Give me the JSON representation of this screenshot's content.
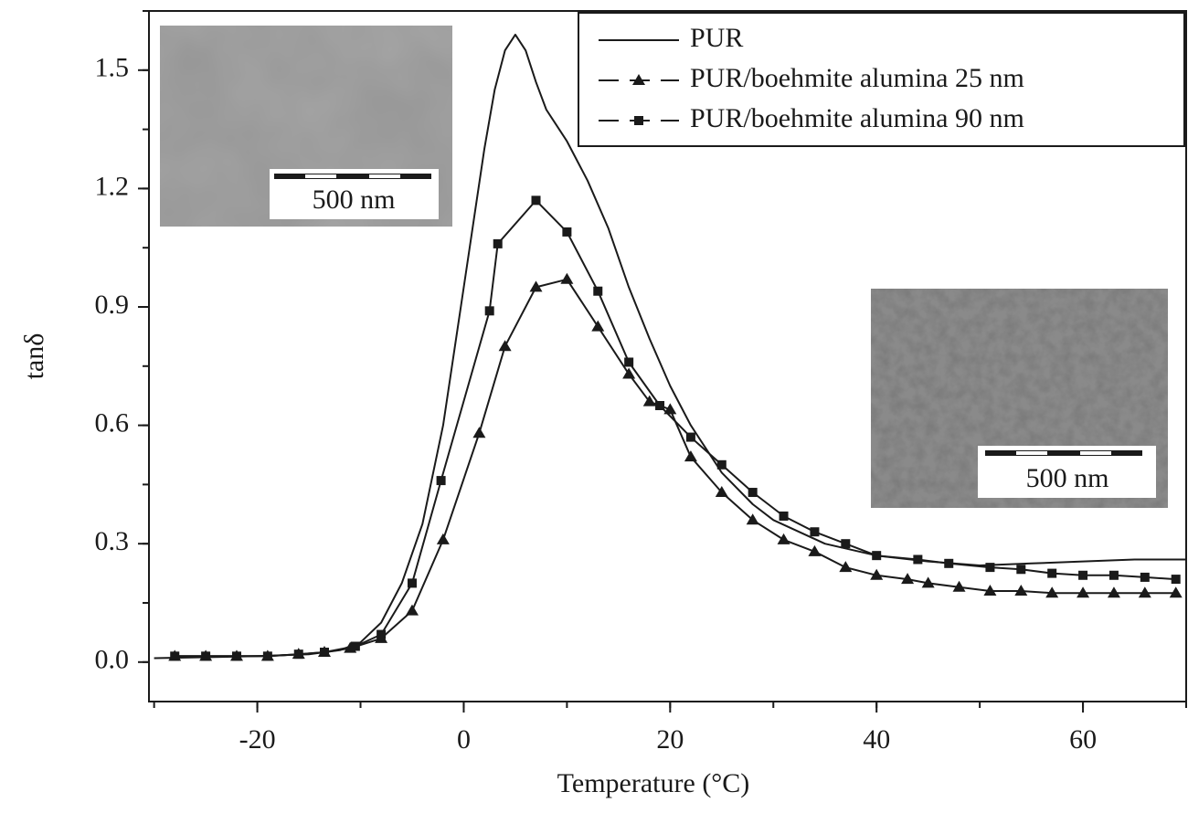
{
  "chart_data": {
    "type": "line",
    "xlabel": "Temperature (°C)",
    "ylabel": "tanδ",
    "xlim": [
      -30.5,
      70
    ],
    "xticks": [
      -20,
      0,
      20,
      40,
      60
    ],
    "ylim": [
      -0.1,
      1.65
    ],
    "yticks": [
      {
        "value": 0,
        "label": "0.0"
      },
      0.3,
      0.6,
      0.9,
      1.2,
      1.5
    ],
    "legend": "upper right",
    "series": [
      {
        "name": "PUR",
        "color": "#1a1a1a",
        "marker": "none",
        "x": [
          -30,
          -20,
          -15,
          -12,
          -10,
          -8,
          -6,
          -4,
          -2,
          0,
          2,
          3,
          4,
          5,
          6,
          7,
          8,
          10,
          12,
          14,
          16,
          18,
          20,
          22,
          25,
          28,
          30,
          35,
          40,
          45,
          50,
          55,
          60,
          65,
          70
        ],
        "values": [
          0.01,
          0.015,
          0.02,
          0.03,
          0.05,
          0.1,
          0.2,
          0.35,
          0.6,
          0.95,
          1.3,
          1.45,
          1.55,
          1.59,
          1.55,
          1.47,
          1.4,
          1.32,
          1.22,
          1.1,
          0.95,
          0.82,
          0.7,
          0.6,
          0.48,
          0.4,
          0.36,
          0.3,
          0.27,
          0.255,
          0.245,
          0.25,
          0.255,
          0.26,
          0.26
        ]
      },
      {
        "name": "PUR/boehmite alumina 25 nm",
        "color": "#1a1a1a",
        "marker": "triangle",
        "x": [
          -28,
          -25,
          -22,
          -19,
          -16,
          -13.5,
          -11,
          -8,
          -5,
          -2,
          1.5,
          4,
          7,
          10,
          13,
          16,
          18,
          20,
          22,
          25,
          28,
          31,
          34,
          37,
          40,
          43,
          45,
          48,
          51,
          54,
          57,
          60,
          63,
          66,
          69
        ],
        "values": [
          0.015,
          0.015,
          0.015,
          0.015,
          0.02,
          0.025,
          0.035,
          0.06,
          0.13,
          0.31,
          0.58,
          0.8,
          0.95,
          0.97,
          0.85,
          0.73,
          0.66,
          0.64,
          0.52,
          0.43,
          0.36,
          0.31,
          0.28,
          0.24,
          0.22,
          0.21,
          0.2,
          0.19,
          0.18,
          0.18,
          0.175,
          0.175,
          0.175,
          0.175,
          0.175
        ]
      },
      {
        "name": "PUR/boehmite alumina 90 nm",
        "color": "#1a1a1a",
        "marker": "square",
        "x": [
          -28,
          -25,
          -22,
          -19,
          -16,
          -13.5,
          -10.5,
          -8,
          -5,
          -2.2,
          2.5,
          3.3,
          7,
          10,
          13,
          16,
          19,
          22,
          25,
          28,
          31,
          34,
          37,
          40,
          44,
          47,
          51,
          54,
          57,
          60,
          63,
          66,
          69
        ],
        "values": [
          0.015,
          0.015,
          0.015,
          0.015,
          0.02,
          0.025,
          0.04,
          0.07,
          0.2,
          0.46,
          0.89,
          1.06,
          1.17,
          1.09,
          0.94,
          0.76,
          0.65,
          0.57,
          0.5,
          0.43,
          0.37,
          0.33,
          0.3,
          0.27,
          0.26,
          0.25,
          0.24,
          0.235,
          0.225,
          0.22,
          0.22,
          0.215,
          0.21
        ]
      }
    ],
    "insets": [
      {
        "label": "500 nm"
      },
      {
        "label": "500 nm"
      }
    ]
  }
}
